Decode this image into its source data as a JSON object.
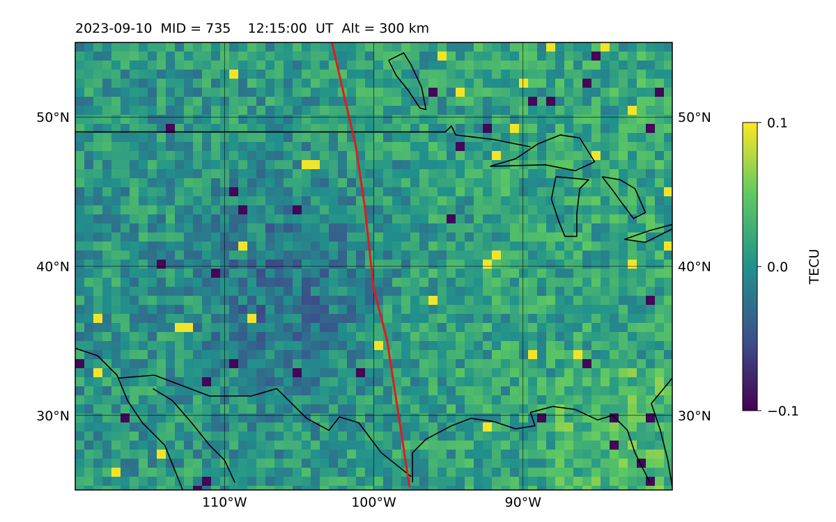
{
  "title": "2023-09-10  MID = 735    12:15:00  UT  Alt = 300 km",
  "map": {
    "lon_range": [
      -120,
      -80
    ],
    "lat_range": [
      25,
      55
    ],
    "lon_ticks": [
      {
        "value": -110,
        "label": "110°W"
      },
      {
        "value": -100,
        "label": "100°W"
      },
      {
        "value": -90,
        "label": "90°W"
      }
    ],
    "lat_ticks": [
      {
        "value": 50,
        "label": "50°N"
      },
      {
        "value": 40,
        "label": "40°N"
      },
      {
        "value": 30,
        "label": "30°N"
      }
    ],
    "grid": true,
    "field": {
      "name": "TECU",
      "range": [
        -0.1,
        0.1
      ],
      "colormap": [
        "#440154",
        "#3b528b",
        "#21918c",
        "#5ec962",
        "#fde725"
      ]
    },
    "track": {
      "color": "#e31a1c",
      "points": [
        [
          -102.8,
          55
        ],
        [
          -101.2,
          48
        ],
        [
          -100.6,
          44
        ],
        [
          -100.0,
          38.5
        ],
        [
          -99.1,
          35
        ],
        [
          -97.6,
          25.2
        ]
      ]
    },
    "features": [
      {
        "name": "us-canada-border",
        "points": [
          [
            -120,
            49
          ],
          [
            -95.2,
            49
          ],
          [
            -94.8,
            49.4
          ],
          [
            -94.5,
            48.8
          ],
          [
            -92,
            48.5
          ],
          [
            -89.5,
            48
          ]
        ]
      },
      {
        "name": "lake-superior",
        "points": [
          [
            -92.2,
            46.7
          ],
          [
            -90.5,
            47.2
          ],
          [
            -89,
            48.2
          ],
          [
            -87.5,
            48.8
          ],
          [
            -86.2,
            48.6
          ],
          [
            -85.2,
            47
          ],
          [
            -86.5,
            46.4
          ],
          [
            -88.5,
            46.8
          ],
          [
            -92.2,
            46.7
          ]
        ]
      },
      {
        "name": "lake-michigan",
        "points": [
          [
            -87.8,
            46
          ],
          [
            -88.1,
            44.5
          ],
          [
            -87.6,
            43
          ],
          [
            -87.2,
            42
          ],
          [
            -86.4,
            42
          ],
          [
            -86.4,
            43.5
          ],
          [
            -86.2,
            45.2
          ],
          [
            -85.6,
            45.8
          ],
          [
            -87.8,
            46
          ]
        ]
      },
      {
        "name": "lake-huron",
        "points": [
          [
            -84.7,
            46
          ],
          [
            -83.5,
            45.8
          ],
          [
            -82.5,
            45.2
          ],
          [
            -81.8,
            43.6
          ],
          [
            -82.6,
            43.2
          ],
          [
            -83.2,
            44
          ],
          [
            -84,
            45.1
          ],
          [
            -84.7,
            46
          ]
        ]
      },
      {
        "name": "lake-erie",
        "points": [
          [
            -83.2,
            41.8
          ],
          [
            -81.5,
            42.4
          ],
          [
            -80,
            42.8
          ],
          [
            -80,
            42.5
          ],
          [
            -81.8,
            41.6
          ],
          [
            -83.2,
            41.8
          ]
        ]
      },
      {
        "name": "lake-winnipeg",
        "points": [
          [
            -99,
            53.8
          ],
          [
            -98,
            54.3
          ],
          [
            -97.5,
            53.5
          ],
          [
            -96.8,
            52
          ],
          [
            -96.5,
            50.5
          ],
          [
            -96.9,
            50.6
          ],
          [
            -97.7,
            51.8
          ],
          [
            -98.5,
            52.8
          ],
          [
            -99,
            53.8
          ]
        ]
      },
      {
        "name": "us-mexico-border",
        "points": [
          [
            -117.1,
            32.5
          ],
          [
            -114.7,
            32.7
          ],
          [
            -111,
            31.3
          ],
          [
            -108.2,
            31.3
          ],
          [
            -106.5,
            31.8
          ],
          [
            -104.5,
            29.8
          ],
          [
            -103,
            29
          ],
          [
            -102.3,
            29.9
          ],
          [
            -101,
            29.5
          ],
          [
            -99.5,
            27.5
          ],
          [
            -97.5,
            25.9
          ]
        ]
      },
      {
        "name": "gulf-coast",
        "points": [
          [
            -97.4,
            25.5
          ],
          [
            -97.4,
            27.5
          ],
          [
            -96.5,
            28.4
          ],
          [
            -94.8,
            29.3
          ],
          [
            -93.5,
            29.8
          ],
          [
            -92,
            29.6
          ],
          [
            -90.5,
            29.1
          ],
          [
            -89.2,
            29.3
          ],
          [
            -89.5,
            30.2
          ],
          [
            -88,
            30.6
          ],
          [
            -86.5,
            30.4
          ],
          [
            -85,
            29.7
          ],
          [
            -84,
            30
          ],
          [
            -83,
            29
          ],
          [
            -82.5,
            27.5
          ],
          [
            -81.5,
            25.5
          ]
        ]
      },
      {
        "name": "florida-east-coast",
        "points": [
          [
            -80,
            25.2
          ],
          [
            -80.3,
            27
          ],
          [
            -80.8,
            29
          ],
          [
            -81.4,
            30.8
          ],
          [
            -80,
            32.5
          ]
        ]
      },
      {
        "name": "baja-coast",
        "points": [
          [
            -120,
            34.5
          ],
          [
            -118.5,
            34
          ],
          [
            -117.2,
            32.7
          ],
          [
            -116.5,
            31
          ],
          [
            -115.5,
            29.5
          ],
          [
            -114,
            28
          ],
          [
            -112.8,
            25
          ]
        ]
      },
      {
        "name": "sonora-coast",
        "points": [
          [
            -114.8,
            31.8
          ],
          [
            -113.5,
            31
          ],
          [
            -112.2,
            29.5
          ],
          [
            -111,
            28
          ],
          [
            -110,
            27
          ],
          [
            -109.3,
            25.5
          ]
        ]
      }
    ]
  },
  "colorbar": {
    "label": "TECU",
    "ticks": [
      {
        "value": 0.1,
        "label": "0.1"
      },
      {
        "value": 0.0,
        "label": "0.0"
      },
      {
        "value": -0.1,
        "label": "−0.1"
      }
    ]
  }
}
